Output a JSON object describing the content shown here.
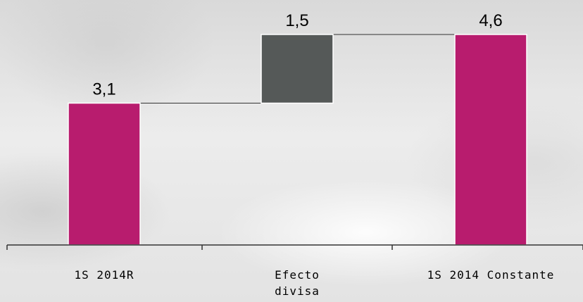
{
  "chart_data": {
    "type": "bar",
    "subtype": "waterfall",
    "categories": [
      "1S 2014R",
      [
        "Efecto",
        "divisa"
      ],
      "1S 2014 Constante"
    ],
    "values": [
      3.1,
      1.5,
      4.6
    ],
    "value_labels": [
      "3,1",
      "1,5",
      "4,6"
    ],
    "kinds": [
      "total",
      "delta",
      "total"
    ],
    "title": "",
    "xlabel": "",
    "ylabel": "",
    "ylim": [
      0,
      5.0
    ],
    "grid": false,
    "legend": "none",
    "colors": {
      "total": "#B81C6E",
      "delta": "#555958",
      "connector": "#333333",
      "axis": "#333333"
    }
  }
}
